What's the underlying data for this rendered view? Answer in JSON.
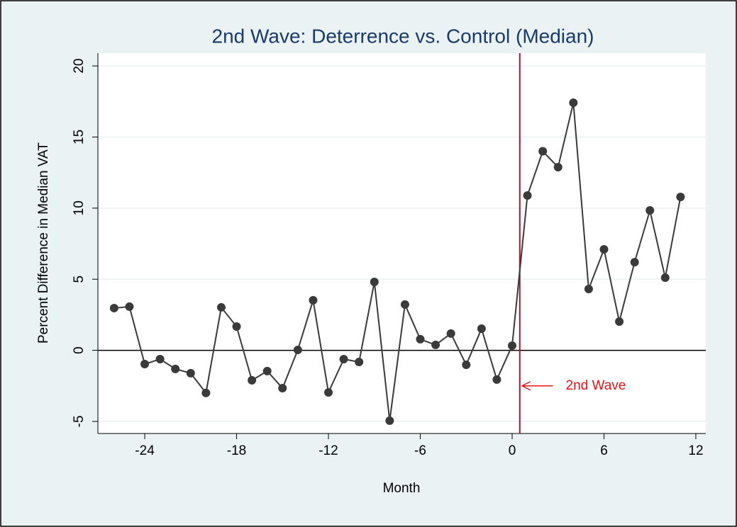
{
  "chart_data": {
    "type": "line",
    "title": "2nd Wave: Deterrence vs. Control (Median)",
    "x_label": "Month",
    "y_label": "Percent Difference in Median VAT",
    "x": [
      -26,
      -25,
      -24,
      -23,
      -22,
      -21,
      -20,
      -19,
      -18,
      -17,
      -16,
      -15,
      -14,
      -13,
      -12,
      -11,
      -10,
      -9,
      -8,
      -7,
      -6,
      -5,
      -4,
      -3,
      -2,
      -1,
      0,
      1,
      2,
      3,
      4,
      5,
      6,
      7,
      8,
      9,
      10,
      11
    ],
    "series": [
      {
        "name": "Percent Difference",
        "color": "#3a3a3a",
        "values": [
          2.97,
          3.07,
          -0.97,
          -0.62,
          -1.31,
          -1.61,
          -3.0,
          3.02,
          1.67,
          -2.11,
          -1.46,
          -2.66,
          0.03,
          3.52,
          -2.96,
          -0.62,
          -0.82,
          4.81,
          -4.95,
          3.22,
          0.78,
          0.38,
          1.18,
          -1.02,
          1.52,
          -2.06,
          0.33,
          10.89,
          14.0,
          12.88,
          17.41,
          4.31,
          7.1,
          2.02,
          6.2,
          9.84,
          5.11,
          10.79
        ]
      }
    ],
    "xlim": [
      -27.06,
      12.65
    ],
    "xticks": [
      -24,
      -18,
      -12,
      -6,
      0,
      6,
      12
    ],
    "ylim": [
      -5.85,
      20.9
    ],
    "yticks": [
      -5,
      0,
      5,
      10,
      15,
      20
    ],
    "grid": true,
    "yline": 0,
    "vline": {
      "x": 0.5,
      "color": "#a0173a"
    },
    "annotation": {
      "text": "2nd Wave",
      "x": 3.5,
      "y": -2.5,
      "color": "#e8141a"
    }
  }
}
